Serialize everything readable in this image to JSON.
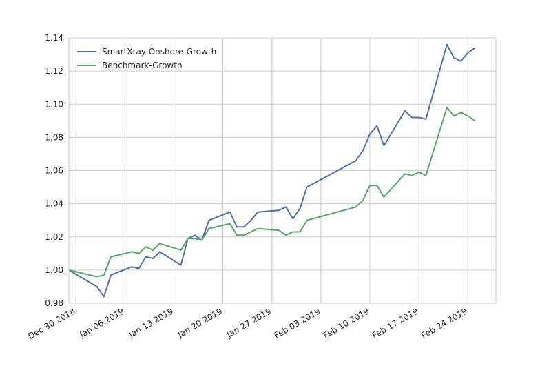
{
  "chart_data": {
    "type": "line",
    "title": "",
    "xlabel": "",
    "ylabel": "",
    "x_tick_labels": [
      "Dec 30 2018",
      "Jan 06 2019",
      "Jan 13 2019",
      "Jan 20 2019",
      "Jan 27 2019",
      "Feb 03 2019",
      "Feb 10 2019",
      "Feb 17 2019",
      "Feb 24 2019"
    ],
    "x_tick_dates": [
      "2018-12-30",
      "2019-01-06",
      "2019-01-13",
      "2019-01-20",
      "2019-01-27",
      "2019-02-03",
      "2019-02-10",
      "2019-02-17",
      "2019-02-24"
    ],
    "xlim": [
      "2018-12-29",
      "2019-02-28"
    ],
    "ylim": [
      0.98,
      1.14
    ],
    "y_ticks": [
      0.98,
      1.0,
      1.02,
      1.04,
      1.06,
      1.08,
      1.1,
      1.12,
      1.14
    ],
    "y_tick_labels": [
      "0.98",
      "1.00",
      "1.02",
      "1.04",
      "1.06",
      "1.08",
      "1.10",
      "1.12",
      "1.14"
    ],
    "grid": true,
    "legend_position": "top-left",
    "x": [
      "2018-12-29",
      "2019-01-02",
      "2019-01-03",
      "2019-01-04",
      "2019-01-07",
      "2019-01-08",
      "2019-01-09",
      "2019-01-10",
      "2019-01-11",
      "2019-01-14",
      "2019-01-15",
      "2019-01-16",
      "2019-01-17",
      "2019-01-18",
      "2019-01-21",
      "2019-01-22",
      "2019-01-23",
      "2019-01-24",
      "2019-01-25",
      "2019-01-28",
      "2019-01-29",
      "2019-01-30",
      "2019-01-31",
      "2019-02-01",
      "2019-02-08",
      "2019-02-09",
      "2019-02-10",
      "2019-02-11",
      "2019-02-12",
      "2019-02-15",
      "2019-02-16",
      "2019-02-17",
      "2019-02-18",
      "2019-02-21",
      "2019-02-22",
      "2019-02-23",
      "2019-02-24",
      "2019-02-25"
    ],
    "series": [
      {
        "name": "SmartXray Onshore-Growth",
        "color": "#4c72b0",
        "values": [
          1.0,
          0.99,
          0.984,
          0.997,
          1.002,
          1.001,
          1.008,
          1.007,
          1.011,
          1.003,
          1.019,
          1.021,
          1.018,
          1.03,
          1.035,
          1.026,
          1.026,
          1.03,
          1.035,
          1.036,
          1.038,
          1.031,
          1.037,
          1.05,
          1.066,
          1.072,
          1.082,
          1.087,
          1.075,
          1.096,
          1.092,
          1.092,
          1.091,
          1.136,
          1.128,
          1.126,
          1.131,
          1.134
        ]
      },
      {
        "name": "Benchmark-Growth",
        "color": "#55a868",
        "values": [
          1.0,
          0.996,
          0.997,
          1.008,
          1.011,
          1.01,
          1.014,
          1.012,
          1.016,
          1.012,
          1.019,
          1.019,
          1.018,
          1.025,
          1.028,
          1.021,
          1.021,
          1.023,
          1.025,
          1.024,
          1.021,
          1.023,
          1.023,
          1.03,
          1.038,
          1.042,
          1.051,
          1.051,
          1.044,
          1.058,
          1.057,
          1.059,
          1.057,
          1.098,
          1.093,
          1.095,
          1.093,
          1.09
        ]
      }
    ]
  }
}
